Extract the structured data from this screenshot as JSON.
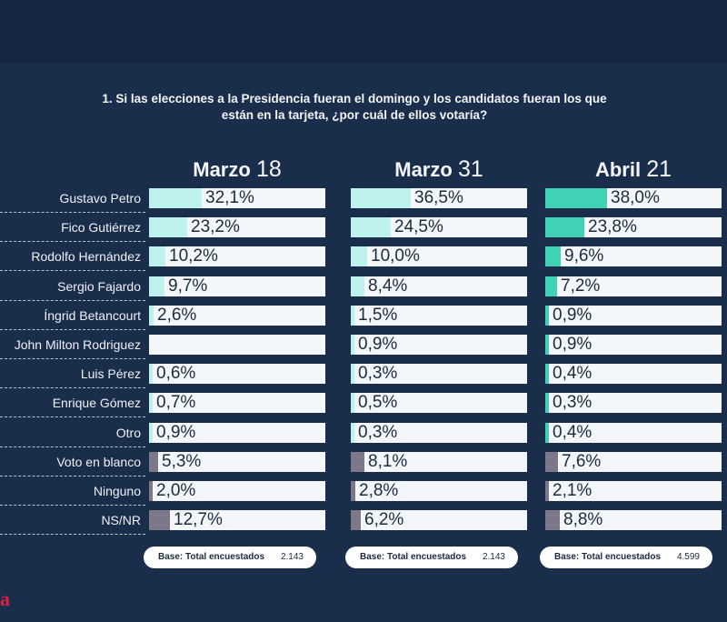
{
  "question": "1. Si las elecciones a la Presidencia fueran el domingo y los candidatos fueran los que están en la tarjeta, ¿por cuál de ellos votaría?",
  "brand_fragment": "a",
  "colors": {
    "background": "#1a2d4b",
    "track": "#f4f7fa",
    "fill_light": "#bdf2ee",
    "fill_strong": "#3fd2b4",
    "fill_gray": "#7d7889"
  },
  "chart_data": {
    "type": "bar",
    "orientation": "horizontal",
    "categories": [
      "Gustavo Petro",
      "Fico Gutiérrez",
      "Rodolfo Hernández",
      "Sergio Fajardo",
      "Íngrid Betancourt",
      "John Milton Rodriguez",
      "Luis Pérez",
      "Enrique Gómez",
      "Otro",
      "Voto en blanco",
      "Ninguno",
      "NS/NR"
    ],
    "xlim": [
      0,
      100
    ],
    "series": [
      {
        "name": "Marzo 18",
        "header_word": "Marzo",
        "header_num": "18",
        "values": [
          32.1,
          23.2,
          10.2,
          9.7,
          2.6,
          null,
          0.6,
          0.7,
          0.9,
          5.3,
          2.0,
          12.7
        ],
        "labels": [
          "32,1%",
          "23,2%",
          "10,2%",
          "9,7%",
          "2,6%",
          "",
          "0,6%",
          "0,7%",
          "0,9%",
          "5,3%",
          "2,0%",
          "12,7%"
        ],
        "base_label": "Base: Total encuestados",
        "base_value": "2.143"
      },
      {
        "name": "Marzo 31",
        "header_word": "Marzo",
        "header_num": "31",
        "values": [
          36.5,
          24.5,
          10.0,
          8.4,
          1.5,
          0.9,
          0.3,
          0.5,
          0.3,
          8.1,
          2.8,
          6.2
        ],
        "labels": [
          "36,5%",
          "24,5%",
          "10,0%",
          "8,4%",
          "1,5%",
          "0,9%",
          "0,3%",
          "0,5%",
          "0,3%",
          "8,1%",
          "2,8%",
          "6,2%"
        ],
        "base_label": "Base: Total encuestados",
        "base_value": "2.143"
      },
      {
        "name": "Abril 21",
        "header_word": "Abril",
        "header_num": "21",
        "values": [
          38.0,
          23.8,
          9.6,
          7.2,
          0.9,
          0.9,
          0.4,
          0.3,
          0.4,
          7.6,
          2.1,
          8.8
        ],
        "labels": [
          "38,0%",
          "23,8%",
          "9,6%",
          "7,2%",
          "0,9%",
          "0,9%",
          "0,4%",
          "0,3%",
          "0,4%",
          "7,6%",
          "2,1%",
          "8,8%"
        ],
        "base_label": "Base: Total encuestados",
        "base_value": "4.599"
      }
    ]
  }
}
